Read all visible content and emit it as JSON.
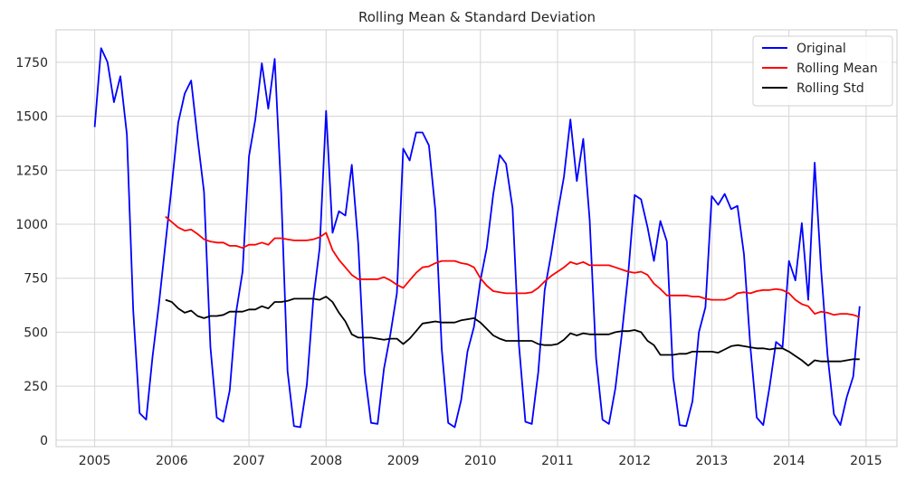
{
  "chart_data": {
    "type": "line",
    "title": "Rolling Mean & Standard Deviation",
    "xlabel": "",
    "ylabel": "",
    "xlim": [
      2004.5,
      2015.4
    ],
    "ylim": [
      -30,
      1900
    ],
    "grid": true,
    "legend_position": "top-right",
    "x_ticks": [
      2005,
      2006,
      2007,
      2008,
      2009,
      2010,
      2011,
      2012,
      2013,
      2014,
      2015
    ],
    "x_tick_labels": [
      "2005",
      "2006",
      "2007",
      "2008",
      "2009",
      "2010",
      "2011",
      "2012",
      "2013",
      "2014",
      "2015"
    ],
    "y_ticks": [
      0,
      250,
      500,
      750,
      1000,
      1250,
      1500,
      1750
    ],
    "y_tick_labels": [
      "0",
      "250",
      "500",
      "750",
      "1000",
      "1250",
      "1500",
      "1750"
    ],
    "series": [
      {
        "name": "Original",
        "color": "#0000ff",
        "x": [
          2005.0,
          2005.083,
          2005.167,
          2005.25,
          2005.333,
          2005.417,
          2005.5,
          2005.583,
          2005.667,
          2005.75,
          2005.833,
          2005.917,
          2006.0,
          2006.083,
          2006.167,
          2006.25,
          2006.333,
          2006.417,
          2006.5,
          2006.583,
          2006.667,
          2006.75,
          2006.833,
          2006.917,
          2007.0,
          2007.083,
          2007.167,
          2007.25,
          2007.333,
          2007.417,
          2007.5,
          2007.583,
          2007.667,
          2007.75,
          2007.833,
          2007.917,
          2008.0,
          2008.083,
          2008.167,
          2008.25,
          2008.333,
          2008.417,
          2008.5,
          2008.583,
          2008.667,
          2008.75,
          2008.833,
          2008.917,
          2009.0,
          2009.083,
          2009.167,
          2009.25,
          2009.333,
          2009.417,
          2009.5,
          2009.583,
          2009.667,
          2009.75,
          2009.833,
          2009.917,
          2010.0,
          2010.083,
          2010.167,
          2010.25,
          2010.333,
          2010.417,
          2010.5,
          2010.583,
          2010.667,
          2010.75,
          2010.833,
          2010.917,
          2011.0,
          2011.083,
          2011.167,
          2011.25,
          2011.333,
          2011.417,
          2011.5,
          2011.583,
          2011.667,
          2011.75,
          2011.833,
          2011.917,
          2012.0,
          2012.083,
          2012.167,
          2012.25,
          2012.333,
          2012.417,
          2012.5,
          2012.583,
          2012.667,
          2012.75,
          2012.833,
          2012.917,
          2013.0,
          2013.083,
          2013.167,
          2013.25,
          2013.333,
          2013.417,
          2013.5,
          2013.583,
          2013.667,
          2013.75,
          2013.833,
          2013.917,
          2014.0,
          2014.083,
          2014.167,
          2014.25,
          2014.333,
          2014.417,
          2014.5,
          2014.583,
          2014.667,
          2014.75,
          2014.833,
          2014.917
        ],
        "y": [
          1450,
          1815,
          1750,
          1565,
          1685,
          1415,
          600,
          125,
          95,
          385,
          630,
          910,
          1180,
          1470,
          1605,
          1665,
          1400,
          1150,
          430,
          105,
          85,
          230,
          590,
          780,
          1315,
          1485,
          1745,
          1535,
          1765,
          1155,
          320,
          65,
          60,
          255,
          650,
          890,
          1525,
          960,
          1060,
          1040,
          1275,
          910,
          315,
          80,
          75,
          330,
          490,
          680,
          1350,
          1295,
          1425,
          1425,
          1365,
          1060,
          420,
          80,
          60,
          185,
          410,
          525,
          740,
          890,
          1140,
          1320,
          1280,
          1075,
          440,
          85,
          75,
          315,
          695,
          860,
          1050,
          1220,
          1485,
          1200,
          1395,
          1020,
          380,
          95,
          75,
          240,
          490,
          770,
          1135,
          1115,
          985,
          830,
          1015,
          920,
          290,
          70,
          65,
          180,
          500,
          615,
          1130,
          1090,
          1140,
          1070,
          1085,
          860,
          430,
          105,
          70,
          250,
          455,
          430,
          830,
          740,
          1005,
          650,
          1285,
          790,
          395,
          120,
          70,
          200,
          295,
          620
        ]
      },
      {
        "name": "Rolling Mean",
        "color": "#ff0000",
        "x": [
          2005.917,
          2006.0,
          2006.083,
          2006.167,
          2006.25,
          2006.333,
          2006.417,
          2006.5,
          2006.583,
          2006.667,
          2006.75,
          2006.833,
          2006.917,
          2007.0,
          2007.083,
          2007.167,
          2007.25,
          2007.333,
          2007.417,
          2007.5,
          2007.583,
          2007.667,
          2007.75,
          2007.833,
          2007.917,
          2008.0,
          2008.083,
          2008.167,
          2008.25,
          2008.333,
          2008.417,
          2008.5,
          2008.583,
          2008.667,
          2008.75,
          2008.833,
          2008.917,
          2009.0,
          2009.083,
          2009.167,
          2009.25,
          2009.333,
          2009.417,
          2009.5,
          2009.583,
          2009.667,
          2009.75,
          2009.833,
          2009.917,
          2010.0,
          2010.083,
          2010.167,
          2010.25,
          2010.333,
          2010.417,
          2010.5,
          2010.583,
          2010.667,
          2010.75,
          2010.833,
          2010.917,
          2011.0,
          2011.083,
          2011.167,
          2011.25,
          2011.333,
          2011.417,
          2011.5,
          2011.583,
          2011.667,
          2011.75,
          2011.833,
          2011.917,
          2012.0,
          2012.083,
          2012.167,
          2012.25,
          2012.333,
          2012.417,
          2012.5,
          2012.583,
          2012.667,
          2012.75,
          2012.833,
          2012.917,
          2013.0,
          2013.083,
          2013.167,
          2013.25,
          2013.333,
          2013.417,
          2013.5,
          2013.583,
          2013.667,
          2013.75,
          2013.833,
          2013.917,
          2014.0,
          2014.083,
          2014.167,
          2014.25,
          2014.333,
          2014.417,
          2014.5,
          2014.583,
          2014.667,
          2014.75,
          2014.833,
          2014.917
        ],
        "y": [
          1035,
          1010,
          985,
          970,
          975,
          955,
          930,
          920,
          915,
          915,
          900,
          900,
          890,
          905,
          905,
          915,
          905,
          935,
          935,
          930,
          925,
          925,
          925,
          930,
          940,
          960,
          880,
          835,
          800,
          765,
          745,
          745,
          745,
          745,
          755,
          740,
          720,
          705,
          740,
          775,
          800,
          805,
          820,
          830,
          830,
          830,
          820,
          815,
          800,
          750,
          715,
          690,
          685,
          680,
          680,
          680,
          680,
          685,
          705,
          735,
          760,
          780,
          800,
          825,
          815,
          825,
          810,
          810,
          810,
          810,
          800,
          790,
          780,
          775,
          780,
          765,
          725,
          700,
          670,
          670,
          670,
          670,
          665,
          665,
          655,
          650,
          650,
          650,
          660,
          680,
          685,
          680,
          690,
          695,
          695,
          700,
          695,
          680,
          650,
          630,
          620,
          585,
          595,
          590,
          580,
          585,
          585,
          580,
          570
        ]
      },
      {
        "name": "Rolling Std",
        "color": "#000000",
        "x": [
          2005.917,
          2006.0,
          2006.083,
          2006.167,
          2006.25,
          2006.333,
          2006.417,
          2006.5,
          2006.583,
          2006.667,
          2006.75,
          2006.833,
          2006.917,
          2007.0,
          2007.083,
          2007.167,
          2007.25,
          2007.333,
          2007.417,
          2007.5,
          2007.583,
          2007.667,
          2007.75,
          2007.833,
          2007.917,
          2008.0,
          2008.083,
          2008.167,
          2008.25,
          2008.333,
          2008.417,
          2008.5,
          2008.583,
          2008.667,
          2008.75,
          2008.833,
          2008.917,
          2009.0,
          2009.083,
          2009.167,
          2009.25,
          2009.333,
          2009.417,
          2009.5,
          2009.583,
          2009.667,
          2009.75,
          2009.833,
          2009.917,
          2010.0,
          2010.083,
          2010.167,
          2010.25,
          2010.333,
          2010.417,
          2010.5,
          2010.583,
          2010.667,
          2010.75,
          2010.833,
          2010.917,
          2011.0,
          2011.083,
          2011.167,
          2011.25,
          2011.333,
          2011.417,
          2011.5,
          2011.583,
          2011.667,
          2011.75,
          2011.833,
          2011.917,
          2012.0,
          2012.083,
          2012.167,
          2012.25,
          2012.333,
          2012.417,
          2012.5,
          2012.583,
          2012.667,
          2012.75,
          2012.833,
          2012.917,
          2013.0,
          2013.083,
          2013.167,
          2013.25,
          2013.333,
          2013.417,
          2013.5,
          2013.583,
          2013.667,
          2013.75,
          2013.833,
          2013.917,
          2014.0,
          2014.083,
          2014.167,
          2014.25,
          2014.333,
          2014.417,
          2014.5,
          2014.583,
          2014.667,
          2014.75,
          2014.833,
          2014.917
        ],
        "y": [
          650,
          640,
          610,
          590,
          600,
          575,
          565,
          575,
          575,
          580,
          595,
          595,
          595,
          605,
          605,
          620,
          610,
          640,
          640,
          645,
          655,
          655,
          655,
          655,
          650,
          665,
          640,
          590,
          550,
          490,
          475,
          475,
          475,
          470,
          465,
          470,
          470,
          445,
          470,
          505,
          540,
          545,
          550,
          545,
          545,
          545,
          555,
          560,
          565,
          545,
          515,
          485,
          470,
          460,
          460,
          460,
          460,
          460,
          445,
          440,
          440,
          445,
          465,
          495,
          485,
          495,
          490,
          490,
          490,
          490,
          500,
          505,
          505,
          510,
          500,
          460,
          440,
          395,
          395,
          395,
          400,
          400,
          410,
          410,
          410,
          410,
          405,
          420,
          435,
          440,
          435,
          430,
          425,
          425,
          420,
          425,
          425,
          410,
          390,
          370,
          345,
          370,
          365,
          365,
          365,
          365,
          370,
          375,
          375
        ]
      }
    ]
  }
}
